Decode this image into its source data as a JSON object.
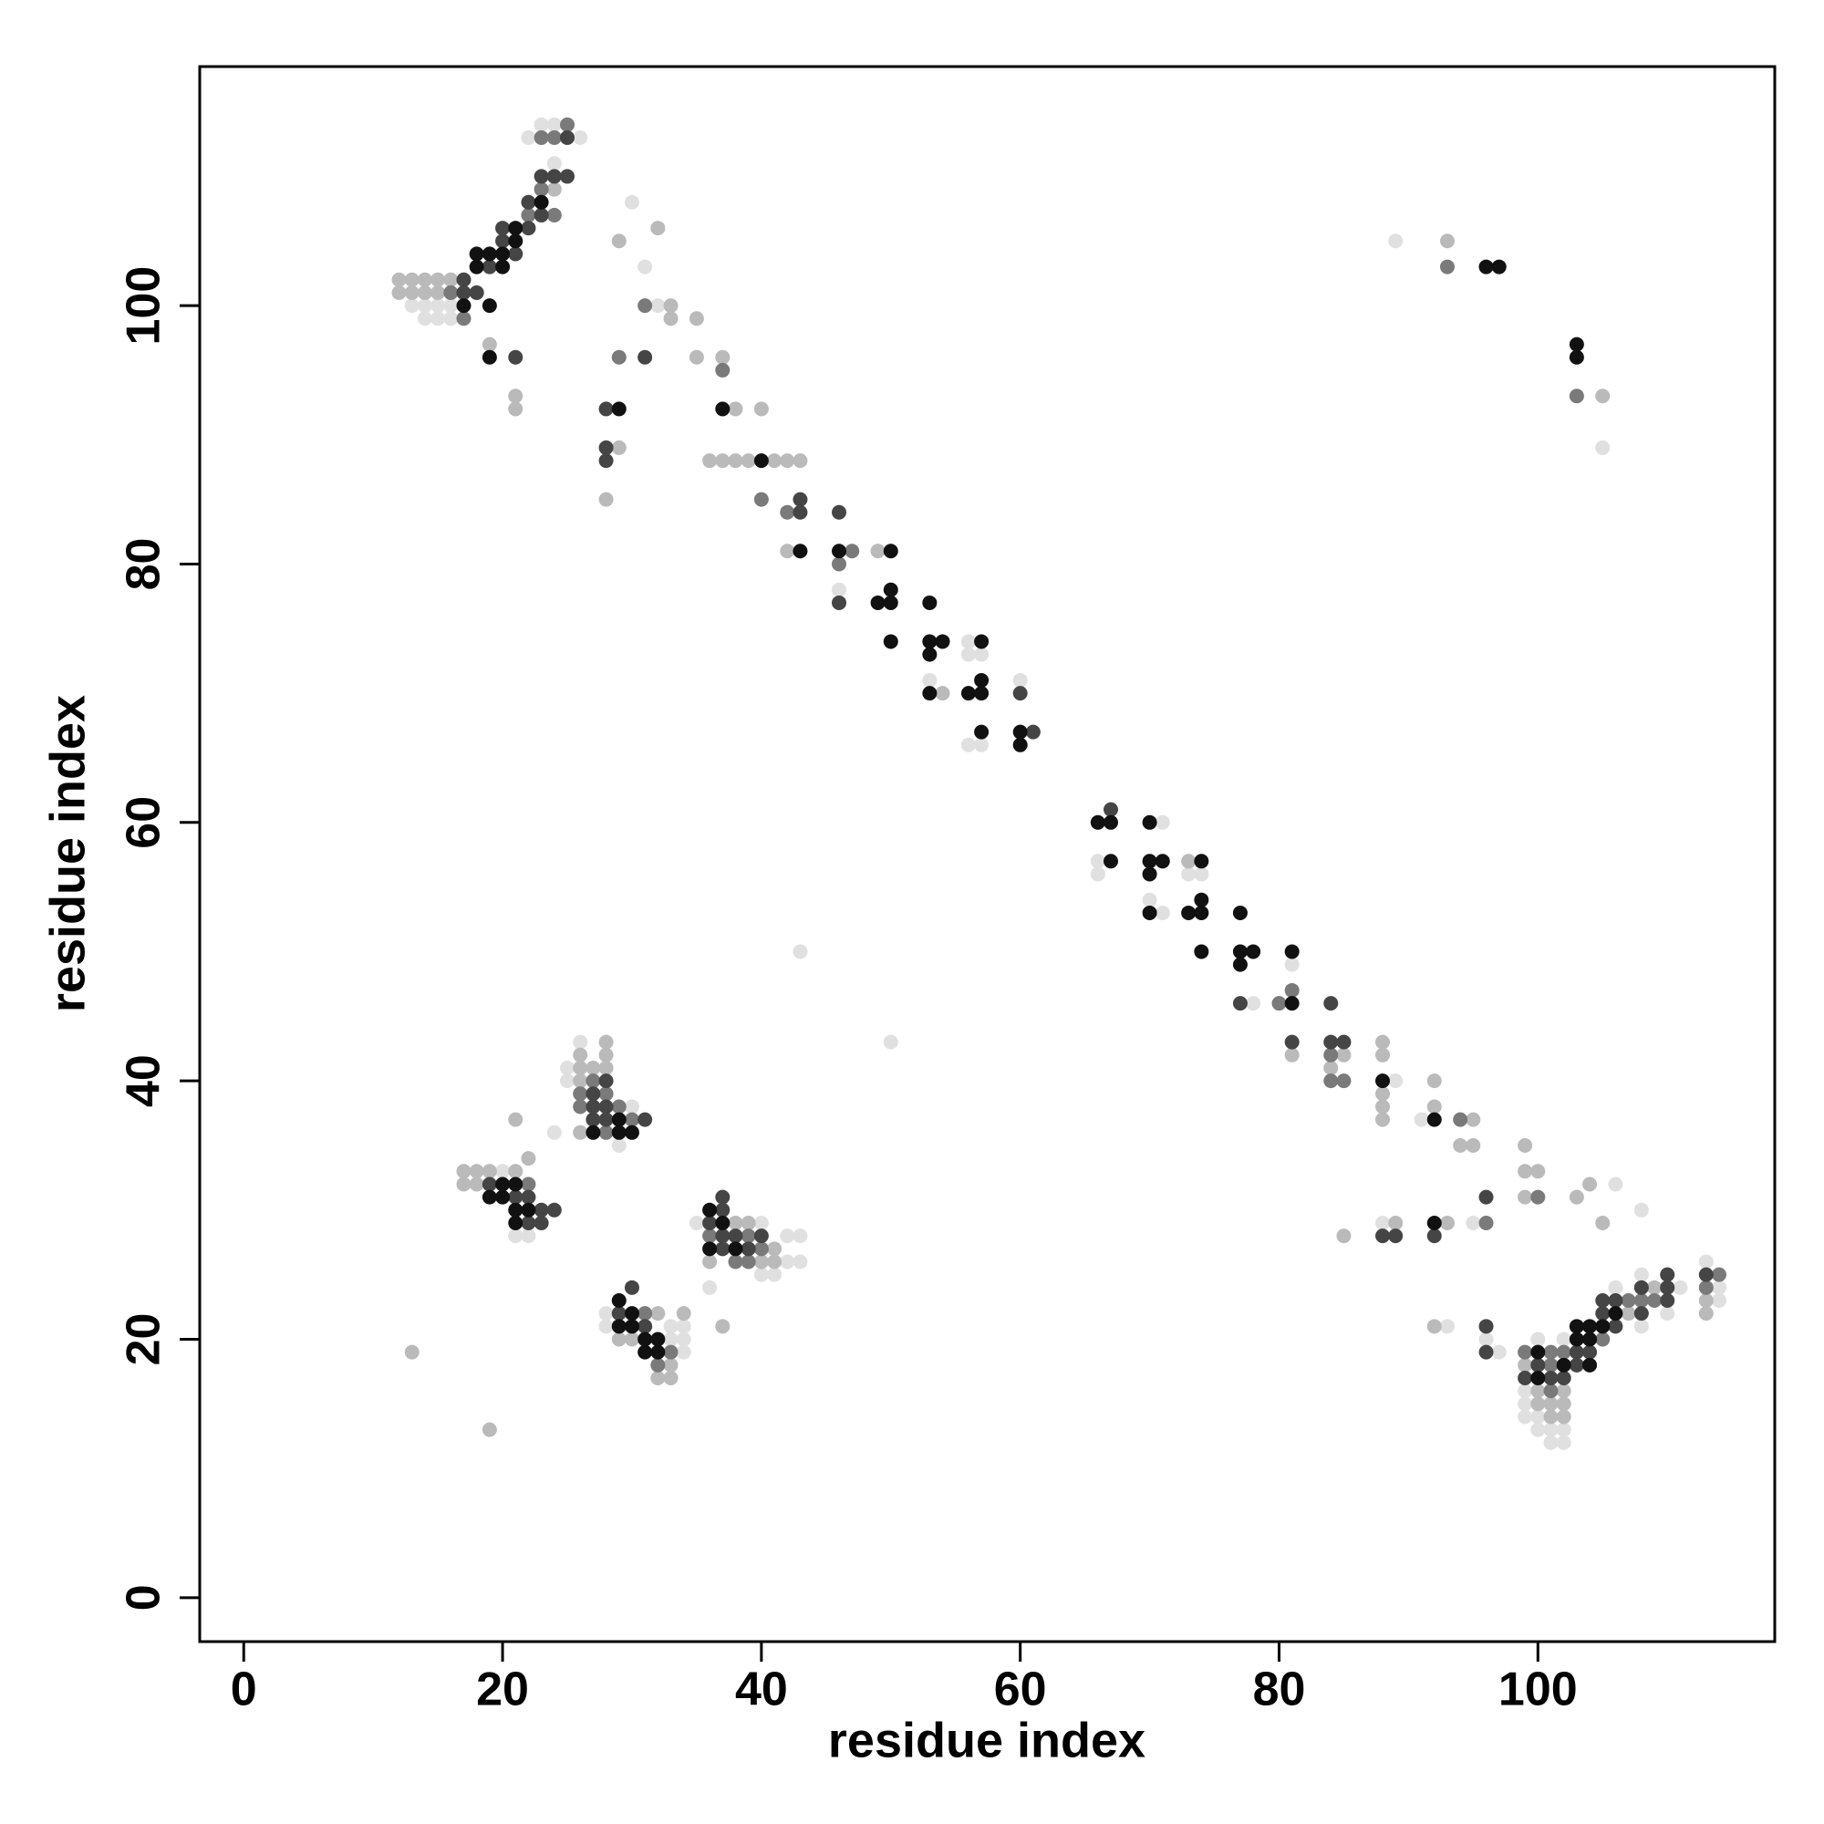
{
  "chart_data": {
    "type": "scatter",
    "xlabel": "residue index",
    "ylabel": "residue index",
    "xlim": [
      -3.4,
      118.3
    ],
    "ylim": [
      -3.4,
      118.5
    ],
    "xticks": [
      0,
      20,
      40,
      60,
      80,
      100
    ],
    "yticks": [
      0,
      20,
      40,
      60,
      80,
      100
    ],
    "series": [
      {
        "color": "#e0e0e0",
        "x": [
          13,
          14,
          15,
          16,
          14,
          15,
          16,
          22,
          26,
          23,
          24,
          24,
          30,
          31,
          32,
          46,
          53,
          56,
          56,
          57,
          56,
          57,
          60,
          66,
          66,
          71,
          70,
          71,
          73,
          74,
          78,
          81,
          89,
          91,
          106,
          108,
          95,
          88,
          93,
          97,
          96,
          99,
          99,
          99,
          100,
          100,
          100,
          101,
          101,
          102,
          102,
          102,
          108,
          108,
          110,
          111,
          113,
          114,
          114,
          106,
          89,
          105,
          20,
          21,
          22,
          24,
          25,
          25,
          26,
          29,
          30,
          43,
          50,
          28,
          28,
          33,
          33,
          34,
          34,
          34,
          35,
          36,
          40,
          40,
          41,
          42,
          42,
          43,
          43
        ],
        "values": [
          100,
          100,
          100,
          100,
          99,
          99,
          99,
          113,
          113,
          114,
          114,
          111,
          108,
          103,
          100,
          78,
          71,
          74,
          73,
          73,
          66,
          66,
          71,
          57,
          56,
          60,
          54,
          53,
          56,
          56,
          46,
          49,
          40,
          37,
          32,
          30,
          29,
          29,
          21,
          19,
          20,
          16,
          15,
          14,
          20,
          14,
          13,
          13,
          12,
          20,
          13,
          12,
          25,
          21,
          22,
          24,
          26,
          24,
          23,
          24,
          105,
          89,
          33,
          28,
          28,
          36,
          41,
          40,
          43,
          35,
          38,
          50,
          43,
          22,
          21,
          21,
          20,
          21,
          20,
          19,
          29,
          24,
          29,
          25,
          25,
          28,
          26,
          28,
          26
        ]
      },
      {
        "color": "#bababa",
        "x": [
          12,
          13,
          14,
          15,
          16,
          12,
          13,
          14,
          15,
          19,
          21,
          21,
          24,
          29,
          28,
          29,
          32,
          33,
          33,
          35,
          35,
          37,
          38,
          36,
          37,
          38,
          39,
          41,
          42,
          43,
          40,
          42,
          49,
          54,
          73,
          81,
          84,
          85,
          88,
          88,
          88,
          88,
          88,
          92,
          92,
          95,
          94,
          95,
          99,
          99,
          100,
          99,
          103,
          104,
          105,
          93,
          89,
          85,
          92,
          99,
          100,
          100,
          101,
          101,
          102,
          102,
          102,
          107,
          109,
          113,
          113,
          93,
          105,
          18,
          19,
          18,
          21,
          22,
          17,
          17,
          21,
          13,
          19,
          26,
          26,
          26,
          26,
          27,
          28,
          28,
          28,
          29,
          30,
          32,
          32,
          33,
          33,
          34,
          36,
          37,
          38,
          39,
          40,
          41,
          41
        ],
        "values": [
          102,
          102,
          102,
          102,
          102,
          101,
          101,
          101,
          101,
          97,
          93,
          92,
          109,
          89,
          85,
          105,
          106,
          100,
          99,
          99,
          96,
          96,
          92,
          88,
          88,
          88,
          88,
          88,
          88,
          88,
          92,
          81,
          81,
          70,
          57,
          42,
          41,
          42,
          43,
          42,
          39,
          38,
          37,
          38,
          40,
          37,
          35,
          35,
          35,
          33,
          33,
          31,
          31,
          32,
          29,
          29,
          29,
          28,
          21,
          18,
          16,
          15,
          15,
          14,
          16,
          15,
          14,
          22,
          24,
          23,
          22,
          105,
          93,
          33,
          33,
          32,
          33,
          34,
          33,
          32,
          37,
          19,
          13,
          42,
          41,
          40,
          36,
          41,
          43,
          42,
          41,
          20,
          20,
          22,
          17,
          18,
          17,
          22,
          26,
          21,
          29,
          29,
          26,
          27,
          26
        ]
      },
      {
        "color": "#7a7a7a",
        "x": [
          16,
          17,
          22,
          24,
          23,
          23,
          24,
          25,
          29,
          31,
          37,
          40,
          42,
          46,
          47,
          80,
          81,
          84,
          84,
          85,
          94,
          100,
          96,
          99,
          101,
          101,
          101,
          102,
          105,
          107,
          108,
          109,
          113,
          114,
          93,
          103,
          22,
          26,
          26,
          27,
          28,
          28,
          29,
          30,
          31,
          32,
          33,
          36,
          38,
          39,
          39,
          40
        ],
        "values": [
          101,
          99,
          107,
          107,
          109,
          113,
          113,
          114,
          96,
          100,
          95,
          85,
          84,
          80,
          81,
          46,
          47,
          42,
          40,
          40,
          37,
          31,
          29,
          19,
          19,
          18,
          16,
          19,
          20,
          23,
          23,
          23,
          24,
          25,
          103,
          93,
          32,
          39,
          38,
          40,
          39,
          36,
          38,
          37,
          22,
          18,
          19,
          28,
          26,
          28,
          26,
          27
        ]
      },
      {
        "color": "#454545",
        "x": [
          17,
          17,
          18,
          19,
          21,
          20,
          20,
          22,
          23,
          22,
          23,
          24,
          25,
          25,
          21,
          28,
          28,
          28,
          31,
          43,
          43,
          46,
          46,
          60,
          61,
          67,
          77,
          81,
          84,
          84,
          85,
          96,
          92,
          88,
          89,
          96,
          96,
          99,
          100,
          101,
          102,
          103,
          103,
          104,
          105,
          105,
          106,
          106,
          108,
          108,
          110,
          110,
          110,
          113,
          19,
          21,
          22,
          22,
          23,
          23,
          24,
          27,
          27,
          27,
          28,
          28,
          28,
          31,
          29,
          30,
          31,
          36,
          37,
          37,
          37,
          37,
          38,
          39,
          40
        ],
        "values": [
          102,
          101,
          101,
          103,
          104,
          105,
          106,
          106,
          107,
          108,
          110,
          110,
          110,
          113,
          96,
          92,
          89,
          88,
          96,
          85,
          84,
          84,
          77,
          70,
          67,
          61,
          46,
          43,
          46,
          43,
          43,
          31,
          28,
          28,
          28,
          21,
          19,
          17,
          18,
          17,
          17,
          19,
          18,
          19,
          23,
          22,
          23,
          21,
          24,
          22,
          25,
          24,
          23,
          25,
          32,
          31,
          31,
          29,
          30,
          29,
          30,
          39,
          38,
          37,
          40,
          38,
          37,
          37,
          22,
          24,
          21,
          29,
          31,
          30,
          28,
          27,
          28,
          27,
          28
        ]
      },
      {
        "color": "#111111",
        "x": [
          17,
          19,
          18,
          20,
          18,
          19,
          20,
          21,
          21,
          23,
          19,
          29,
          37,
          40,
          43,
          46,
          49,
          50,
          50,
          50,
          50,
          53,
          53,
          53,
          54,
          53,
          57,
          56,
          57,
          57,
          57,
          60,
          60,
          66,
          67,
          67,
          70,
          70,
          71,
          70,
          70,
          74,
          73,
          74,
          74,
          74,
          77,
          77,
          78,
          77,
          81,
          81,
          88,
          92,
          92,
          100,
          100,
          102,
          103,
          103,
          104,
          104,
          104,
          105,
          106,
          96,
          97,
          103,
          103,
          19,
          20,
          20,
          21,
          21,
          21,
          22,
          27,
          29,
          29,
          30,
          29,
          29,
          30,
          30,
          31,
          31,
          32,
          32,
          36,
          36,
          37,
          38
        ],
        "values": [
          100,
          100,
          103,
          103,
          104,
          104,
          104,
          105,
          106,
          108,
          96,
          92,
          92,
          88,
          81,
          81,
          77,
          77,
          78,
          81,
          74,
          77,
          74,
          73,
          74,
          70,
          74,
          70,
          70,
          71,
          67,
          67,
          66,
          60,
          60,
          57,
          60,
          57,
          57,
          56,
          53,
          57,
          53,
          53,
          54,
          50,
          53,
          50,
          50,
          49,
          46,
          50,
          40,
          37,
          29,
          19,
          17,
          18,
          21,
          20,
          21,
          20,
          18,
          21,
          22,
          103,
          103,
          97,
          96,
          31,
          32,
          31,
          32,
          30,
          29,
          30,
          36,
          37,
          36,
          36,
          23,
          21,
          22,
          21,
          20,
          19,
          20,
          19,
          30,
          27,
          29,
          27
        ]
      }
    ]
  }
}
